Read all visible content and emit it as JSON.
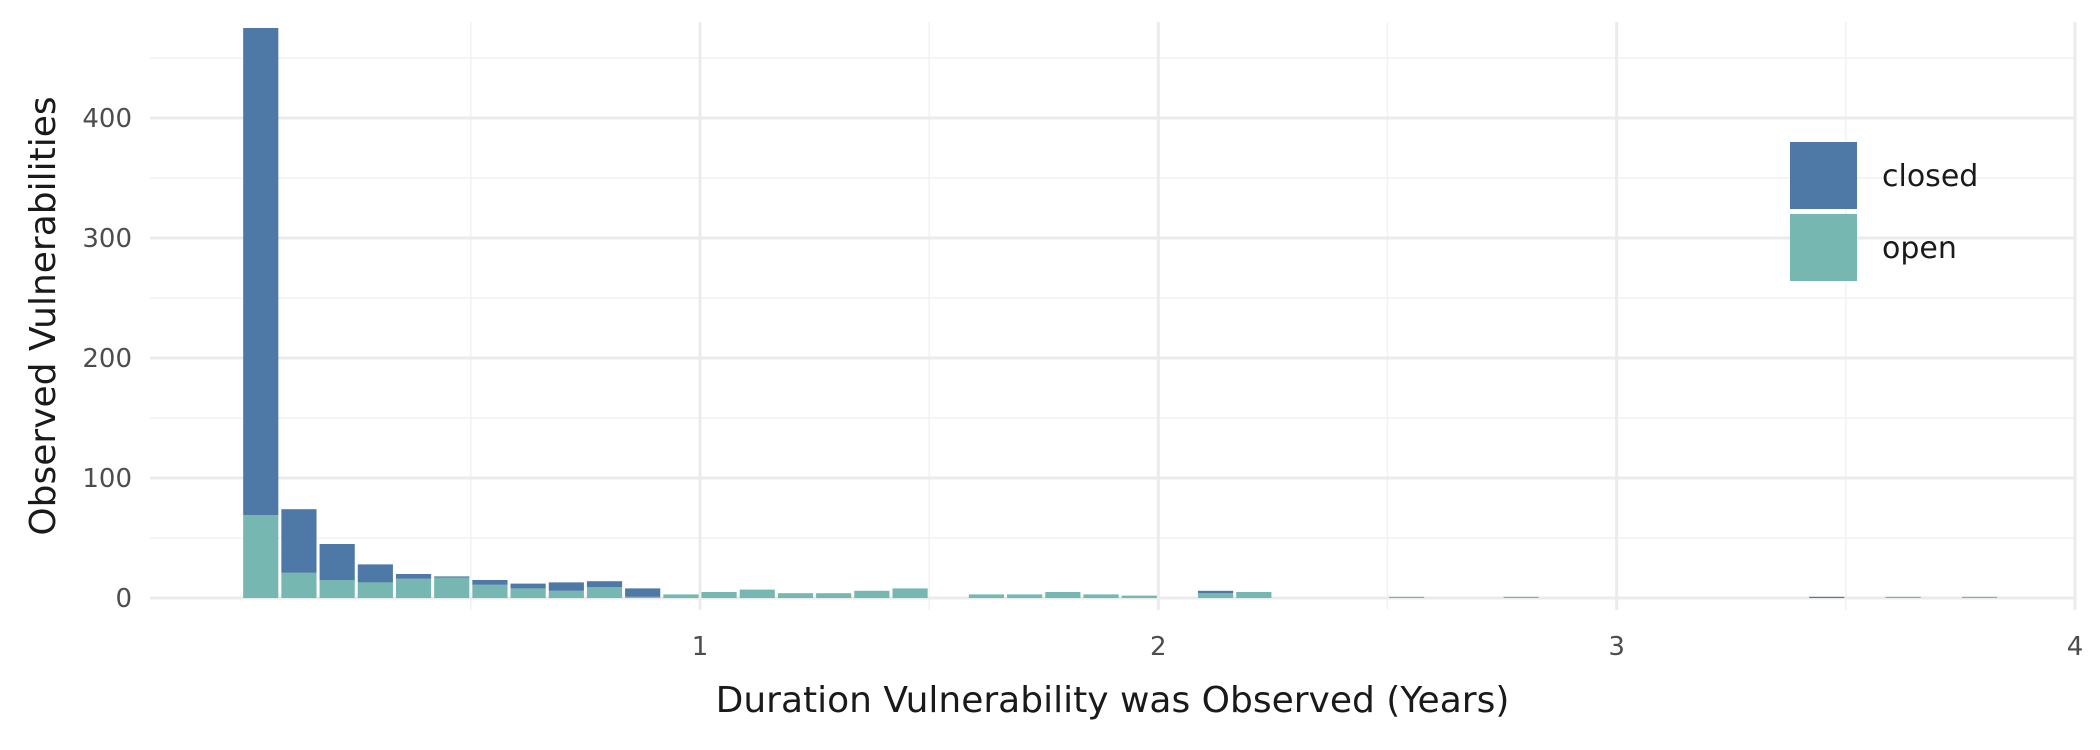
{
  "chart_data": {
    "type": "bar",
    "stacked": true,
    "title": "",
    "xlabel": "Duration Vulnerability was Observed (Years)",
    "ylabel": "Observed Vulnerabilities",
    "xlim": [
      -0.2,
      4.0
    ],
    "ylim": [
      -10,
      480
    ],
    "x_ticks": [
      1,
      2,
      3,
      4
    ],
    "y_ticks": [
      0,
      100,
      200,
      300,
      400
    ],
    "grid": true,
    "legend_position": "top-right",
    "bin_width": 0.0833,
    "x": [
      0.0,
      0.0833,
      0.1667,
      0.25,
      0.3333,
      0.4167,
      0.5,
      0.5833,
      0.6667,
      0.75,
      0.8333,
      0.9167,
      1.0,
      1.0833,
      1.1667,
      1.25,
      1.3333,
      1.4167,
      1.5,
      1.5833,
      1.6667,
      1.75,
      1.8333,
      1.9167,
      2.0,
      2.0833,
      2.1667,
      2.25,
      2.3333,
      2.4167,
      2.5,
      2.5833,
      2.6667,
      2.75,
      2.8333,
      2.9167,
      3.0,
      3.0833,
      3.1667,
      3.25,
      3.3333,
      3.4167,
      3.5,
      3.5833,
      3.6667,
      3.75
    ],
    "series": [
      {
        "name": "closed",
        "color": "#4e79a7",
        "values": [
          406,
          53,
          30,
          15,
          4,
          1,
          4,
          4,
          7,
          5,
          7,
          0,
          0,
          0,
          0,
          0,
          0,
          0,
          0,
          0,
          0,
          0,
          0,
          0,
          0,
          2,
          0,
          0,
          0,
          0,
          0,
          0,
          0,
          0,
          0,
          0,
          0,
          0,
          0,
          0,
          0,
          1,
          0,
          0,
          0,
          0
        ]
      },
      {
        "name": "open",
        "color": "#76b7b2",
        "values": [
          69,
          21,
          15,
          13,
          16,
          17,
          11,
          8,
          6,
          9,
          1,
          3,
          5,
          7,
          4,
          4,
          6,
          8,
          0,
          3,
          3,
          5,
          3,
          2,
          0,
          4,
          5,
          0,
          0,
          0,
          1,
          0,
          0,
          1,
          0,
          0,
          0,
          0,
          0,
          0,
          0,
          0,
          0,
          1,
          0,
          1
        ]
      }
    ]
  }
}
